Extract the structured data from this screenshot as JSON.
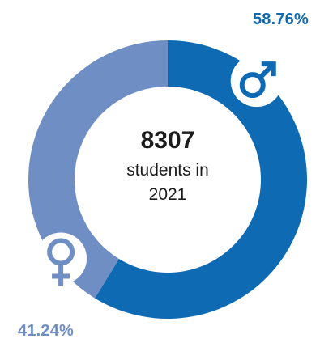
{
  "chart_data": {
    "type": "pie",
    "donut": true,
    "slices": [
      {
        "label": "male",
        "value": 58.76,
        "display": "58.76%",
        "color": "#0f6ab4",
        "icon": "male-symbol-icon"
      },
      {
        "label": "female",
        "value": 41.24,
        "display": "41.24%",
        "color": "#6f8ec3",
        "icon": "female-symbol-icon"
      }
    ],
    "center": {
      "count": "8307",
      "caption": "students in 2021"
    },
    "start_angle_deg": 0,
    "direction": "clockwise"
  }
}
